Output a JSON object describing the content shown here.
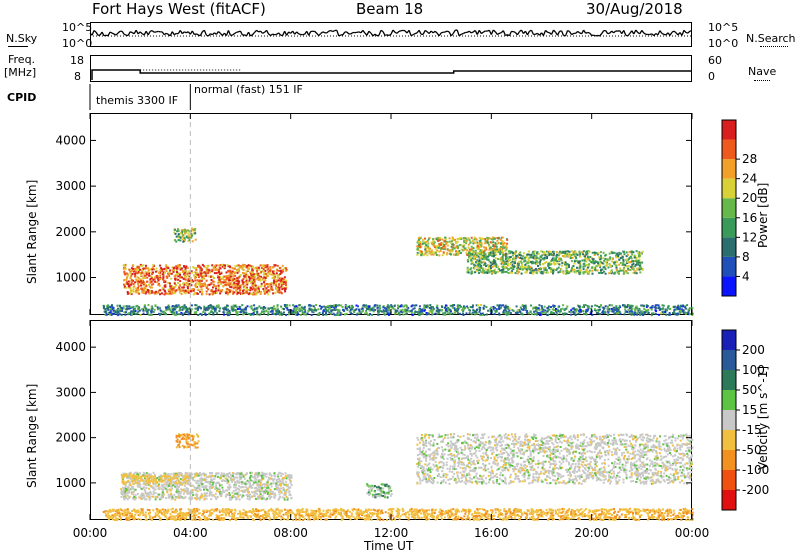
{
  "header": {
    "title": "Fort Hays West (fitACF)",
    "beam": "Beam 18",
    "date": "30/Aug/2018"
  },
  "labels": {
    "nsky": "N.Sky",
    "nsearch": "N.Search",
    "freq_line1": "Freq.",
    "freq_line2": "[MHz]",
    "nave": "Nave",
    "cpid": "CPID",
    "noise_top": "10^5",
    "noise_bot": "10^0",
    "freq_top": "18",
    "freq_bot": "8",
    "nave_top": "60",
    "nave_bot": "0"
  },
  "cpid_segments": [
    {
      "label": "themis 3300 IF",
      "start_hour": 0.0
    },
    {
      "label": "normal (fast) 151 IF",
      "start_hour": 4.0
    }
  ],
  "time_axis": {
    "title": "Time UT",
    "ticks": [
      "00:00",
      "04:00",
      "08:00",
      "12:00",
      "16:00",
      "20:00",
      "00:00"
    ],
    "tick_hours": [
      0,
      4,
      8,
      12,
      16,
      20,
      24
    ]
  },
  "range_axis": {
    "title": "Slant Range [km]",
    "ticks": [
      "1000",
      "2000",
      "3000",
      "4000"
    ],
    "tick_values": [
      1000,
      2000,
      3000,
      4000
    ],
    "ylim": [
      180,
      4600
    ]
  },
  "power_scale": {
    "title": "Power [dB]",
    "ticks": [
      "4",
      "8",
      "12",
      "16",
      "20",
      "24",
      "28"
    ],
    "colors": [
      "#0a14ff",
      "#1f4fb8",
      "#2a6e6e",
      "#3a9a5a",
      "#66b84a",
      "#d8d238",
      "#f2a02a",
      "#ee5a1e",
      "#d81e1e"
    ]
  },
  "velocity_scale": {
    "title": "Velocity [m s^-1]",
    "ticks": [
      "200",
      "100",
      "50",
      "15",
      "-15",
      "-50",
      "-100",
      "-200"
    ],
    "colors": [
      "#1820b8",
      "#2a5a9a",
      "#2c7a5a",
      "#5cc442",
      "#c8c8c8",
      "#f2c040",
      "#f29020",
      "#f05010",
      "#e01010"
    ]
  },
  "chart_data": [
    {
      "type": "heatmap",
      "title": "",
      "xlabel": "Time UT",
      "ylabel": "Slant Range [km]",
      "colorbar_label": "Power [dB]",
      "xlim": [
        0,
        24
      ],
      "ylim": [
        180,
        4600
      ],
      "scatter_regions": [
        {
          "t0": 1.3,
          "t1": 7.8,
          "r0": 650,
          "r1": 1300,
          "power_db": 24
        },
        {
          "t0": 3.3,
          "t1": 4.2,
          "r0": 1800,
          "r1": 2100,
          "power_db": 16
        },
        {
          "t0": 13.0,
          "t1": 16.6,
          "r0": 1500,
          "r1": 1900,
          "power_db": 18
        },
        {
          "t0": 15.0,
          "t1": 22.0,
          "r0": 1100,
          "r1": 1600,
          "power_db": 14
        },
        {
          "t0": 0.5,
          "t1": 24.0,
          "r0": 200,
          "r1": 420,
          "power_db": 10
        }
      ]
    },
    {
      "type": "heatmap",
      "title": "",
      "xlabel": "Time UT",
      "ylabel": "Slant Range [km]",
      "colorbar_label": "Velocity [m s^-1]",
      "xlim": [
        0,
        24
      ],
      "ylim": [
        180,
        4600
      ],
      "scatter_regions": [
        {
          "t0": 1.2,
          "t1": 8.0,
          "r0": 650,
          "r1": 1250,
          "velocity": 0
        },
        {
          "t0": 1.2,
          "t1": 4.0,
          "r0": 1000,
          "r1": 1200,
          "velocity": -30
        },
        {
          "t0": 3.4,
          "t1": 4.3,
          "r0": 1800,
          "r1": 2100,
          "velocity": -60
        },
        {
          "t0": 11.0,
          "t1": 12.0,
          "r0": 700,
          "r1": 1000,
          "velocity": 20
        },
        {
          "t0": 13.0,
          "t1": 24.0,
          "r0": 1000,
          "r1": 2100,
          "velocity": 0
        },
        {
          "t0": 0.5,
          "t1": 24.0,
          "r0": 200,
          "r1": 450,
          "velocity": -40
        }
      ]
    }
  ]
}
